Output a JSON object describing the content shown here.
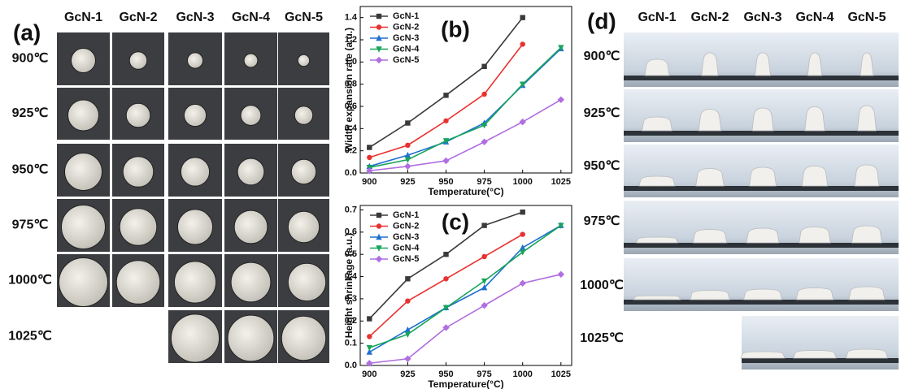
{
  "panel_a": {
    "label": "(a)",
    "columns": [
      "GcN-1",
      "GcN-2",
      "GcN-3",
      "GcN-4",
      "GcN-5"
    ],
    "rows": [
      "900℃",
      "925℃",
      "950℃",
      "975℃",
      "1000℃",
      "1025℃"
    ]
  },
  "panel_d": {
    "label": "(d)",
    "columns": [
      "GcN-1",
      "GcN-2",
      "GcN-3",
      "GcN-4",
      "GcN-5"
    ],
    "rows": [
      "900℃",
      "925℃",
      "950℃",
      "975℃",
      "1000℃",
      "1025℃"
    ]
  },
  "chart_data": [
    {
      "type": "line",
      "title": "(b)",
      "x_label": "Temperature(°C)",
      "y_label": "Width expansion rate (a.u.)",
      "x": [
        900,
        925,
        950,
        975,
        1000,
        1025
      ],
      "series": [
        {
          "name": "GcN-1",
          "color": "#3a3a3a",
          "values": [
            0.23,
            0.45,
            0.7,
            0.96,
            1.4,
            null
          ]
        },
        {
          "name": "GcN-2",
          "color": "#e8312f",
          "values": [
            0.14,
            0.25,
            0.47,
            0.71,
            1.16,
            null
          ]
        },
        {
          "name": "GcN-3",
          "color": "#1f6fd0",
          "values": [
            0.06,
            0.16,
            0.28,
            0.45,
            0.79,
            1.12
          ]
        },
        {
          "name": "GcN-4",
          "color": "#17a45a",
          "values": [
            0.05,
            0.12,
            0.29,
            0.43,
            0.8,
            1.13
          ]
        },
        {
          "name": "GcN-5",
          "color": "#b06ee0",
          "values": [
            0.02,
            0.06,
            0.11,
            0.28,
            0.46,
            0.66
          ]
        }
      ],
      "xlim": [
        894,
        1032
      ],
      "xticks": [
        900,
        925,
        950,
        975,
        1000,
        1025
      ],
      "ylim": [
        0,
        1.5
      ],
      "yticks": [
        {
          "value": 0,
          "label": "0.0"
        },
        0.2,
        0.4,
        0.6,
        0.8,
        {
          "value": 1,
          "label": "1.0"
        },
        1.2,
        1.4
      ],
      "grid": false,
      "legend": "upper left"
    },
    {
      "type": "line",
      "title": "(c)",
      "x_label": "Temperature(°C)",
      "y_label": "Height shrinkage (a.u.)",
      "x": [
        900,
        925,
        950,
        975,
        1000,
        1025
      ],
      "series": [
        {
          "name": "GcN-1",
          "color": "#3a3a3a",
          "values": [
            0.21,
            0.39,
            0.5,
            0.63,
            0.69,
            null
          ]
        },
        {
          "name": "GcN-2",
          "color": "#e8312f",
          "values": [
            0.13,
            0.29,
            0.39,
            0.49,
            0.59,
            null
          ]
        },
        {
          "name": "GcN-3",
          "color": "#1f6fd0",
          "values": [
            0.06,
            0.16,
            0.26,
            0.35,
            0.53,
            0.63
          ]
        },
        {
          "name": "GcN-4",
          "color": "#17a45a",
          "values": [
            0.08,
            0.14,
            0.26,
            0.38,
            0.51,
            0.63
          ]
        },
        {
          "name": "GcN-5",
          "color": "#b06ee0",
          "values": [
            0.01,
            0.03,
            0.17,
            0.27,
            0.37,
            0.41
          ]
        }
      ],
      "xlim": [
        894,
        1032
      ],
      "xticks": [
        900,
        925,
        950,
        975,
        1000,
        1025
      ],
      "ylim": [
        0,
        0.72
      ],
      "yticks": [
        {
          "value": 0,
          "label": "0.0"
        },
        0.1,
        0.2,
        0.3,
        0.4,
        0.5,
        0.6,
        0.7
      ],
      "grid": false,
      "legend": "upper left"
    }
  ]
}
